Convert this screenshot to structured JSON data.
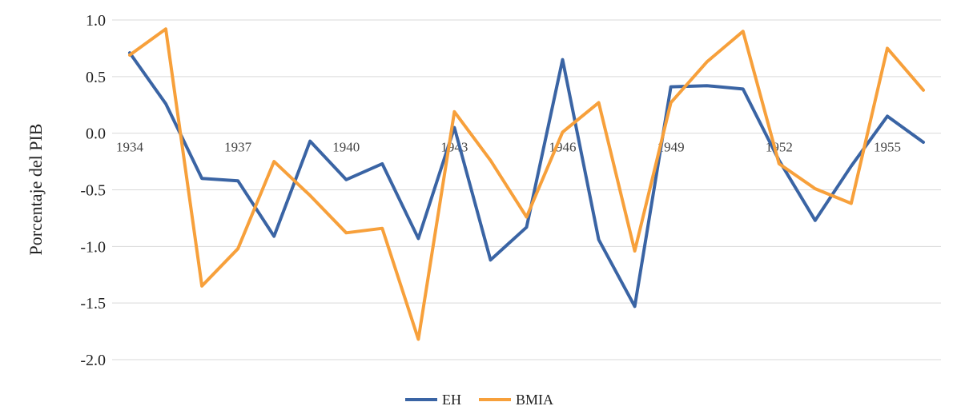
{
  "chart_data": {
    "type": "line",
    "title": "",
    "xlabel": "",
    "ylabel": "Porcentaje del PIB",
    "ylim": [
      -2.0,
      1.0
    ],
    "y_ticks": [
      "1.0",
      "0.5",
      "0.0",
      "-0.5",
      "-1.0",
      "-1.5",
      "-2.0"
    ],
    "y_tick_values": [
      1.0,
      0.5,
      0.0,
      -0.5,
      -1.0,
      -1.5,
      -2.0
    ],
    "x": [
      1934,
      1935,
      1936,
      1937,
      1938,
      1939,
      1940,
      1941,
      1942,
      1943,
      1944,
      1945,
      1946,
      1947,
      1948,
      1949,
      1950,
      1951,
      1952,
      1953,
      1954,
      1955,
      1956
    ],
    "x_tick_labels": [
      "1934",
      "1937",
      "1940",
      "1943",
      "1946",
      "1949",
      "1952",
      "1955"
    ],
    "x_tick_years": [
      1934,
      1937,
      1940,
      1943,
      1946,
      1949,
      1952,
      1955
    ],
    "grid": true,
    "legend_position": "bottom",
    "series": [
      {
        "name": "EH",
        "color": "#3a64a4",
        "values": [
          0.71,
          0.26,
          -0.4,
          -0.42,
          -0.91,
          -0.07,
          -0.41,
          -0.27,
          -0.93,
          0.05,
          -1.12,
          -0.83,
          0.65,
          -0.94,
          -1.53,
          0.41,
          0.42,
          0.39,
          -0.24,
          -0.77,
          -0.29,
          0.15,
          -0.08
        ]
      },
      {
        "name": "BMIA",
        "color": "#f7a03b",
        "values": [
          0.69,
          0.92,
          -1.35,
          -1.02,
          -0.25,
          -0.55,
          -0.88,
          -0.84,
          -1.82,
          0.19,
          -0.24,
          -0.74,
          0.01,
          0.27,
          -1.04,
          0.27,
          0.63,
          0.9,
          -0.27,
          -0.49,
          -0.62,
          0.75,
          0.38
        ]
      }
    ]
  }
}
